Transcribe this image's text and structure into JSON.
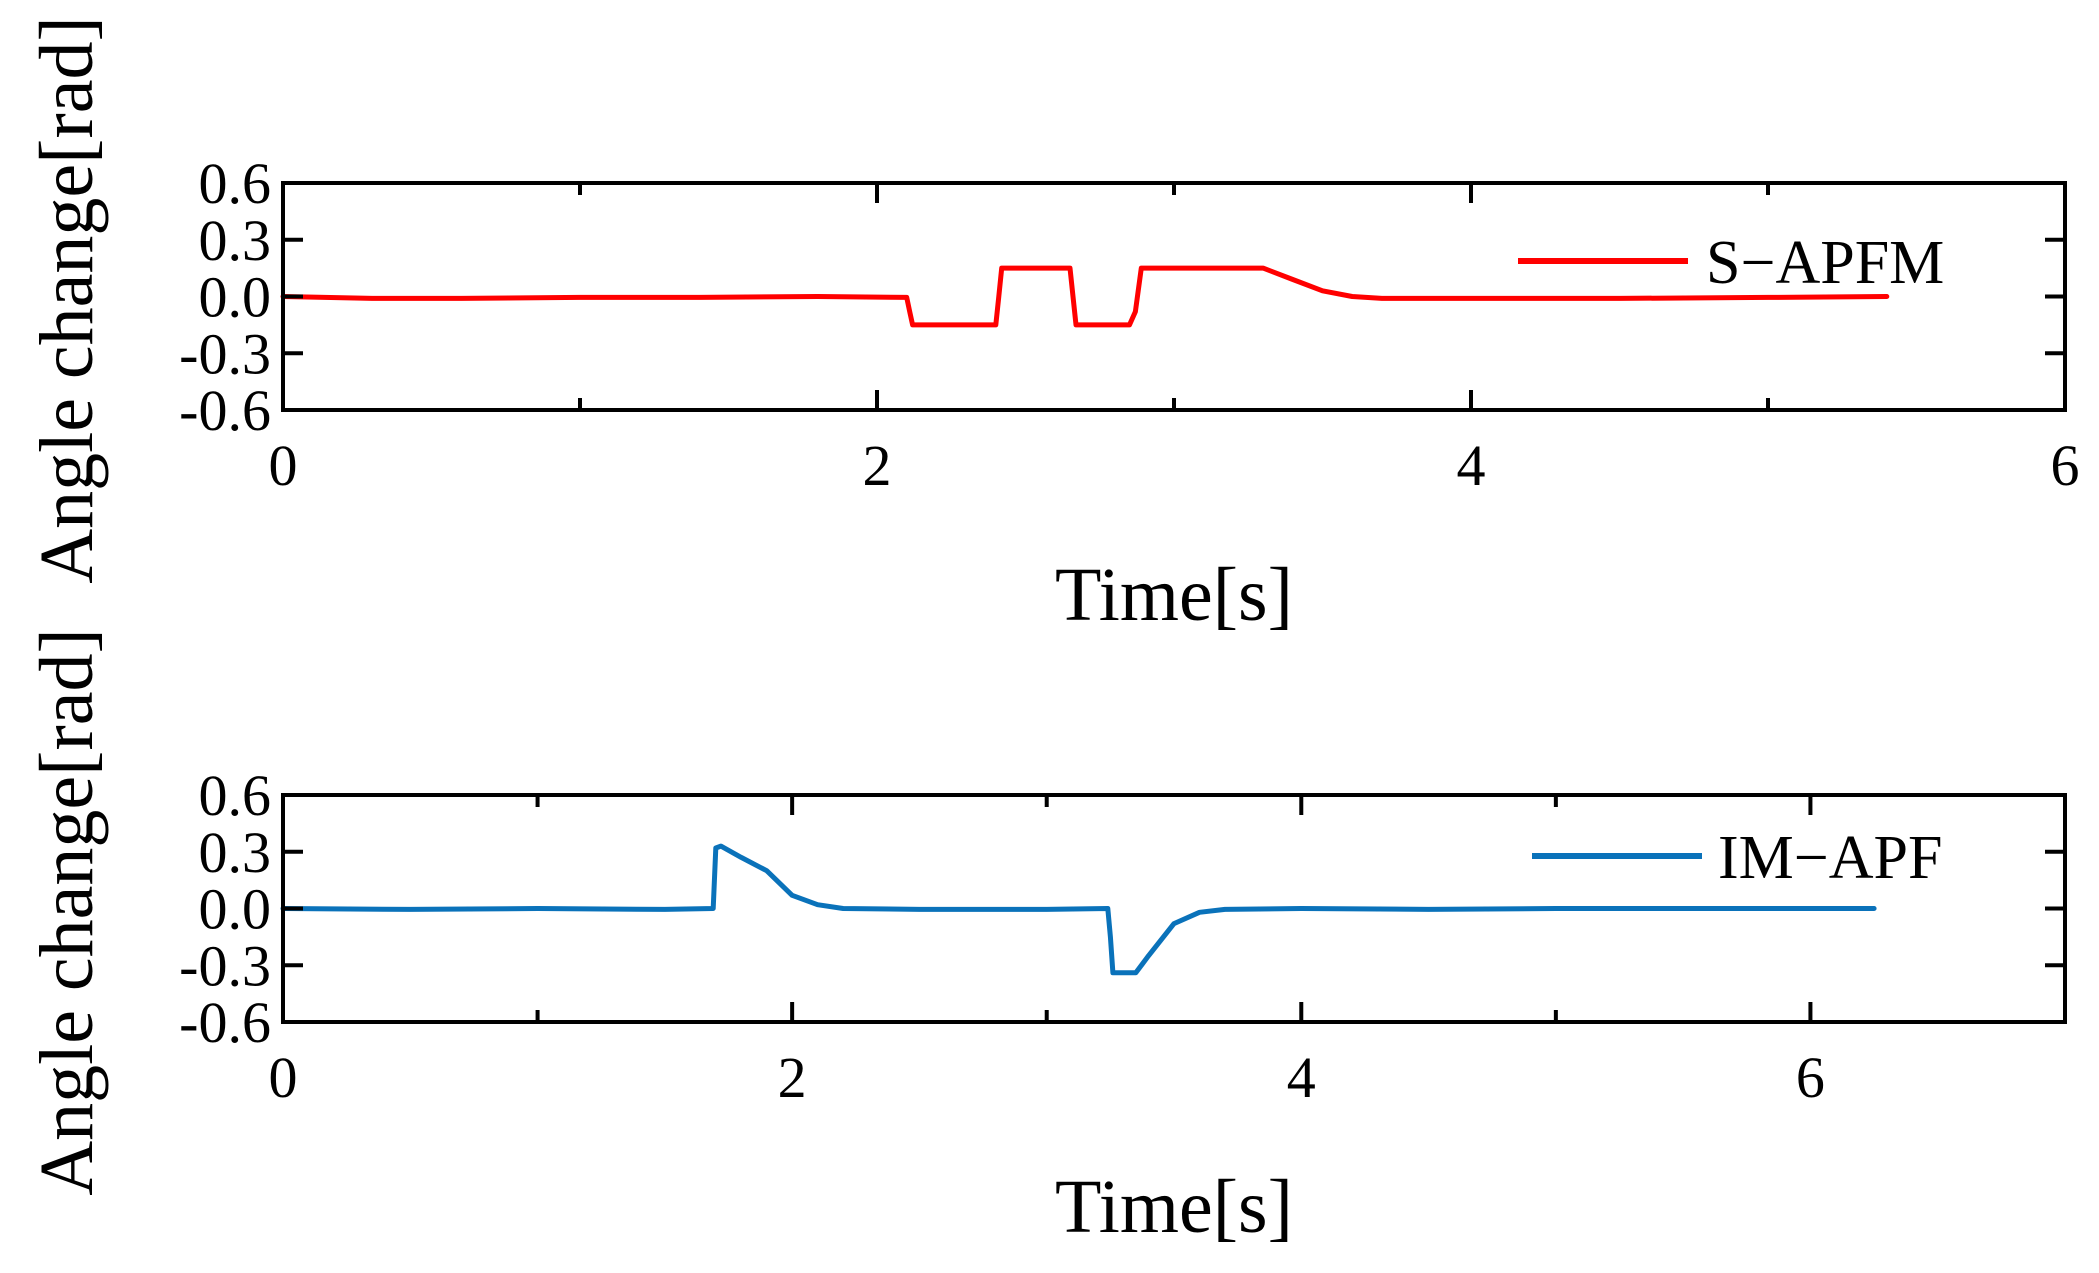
{
  "colors": {
    "series_red": "#ff0000",
    "series_blue": "#0a72ba",
    "axis": "#000000"
  },
  "chart_data": [
    {
      "type": "line",
      "xlabel": "Time[s]",
      "ylabel": "Angle change[rad]",
      "xlim": [
        0,
        6
      ],
      "ylim": [
        -0.6,
        0.6
      ],
      "xticks": [
        0,
        2,
        4,
        6
      ],
      "xtick_labels": [
        "0",
        "2",
        "4",
        "6"
      ],
      "xminor": [
        1,
        3,
        5
      ],
      "yticks": [
        0.6,
        0.3,
        0.0,
        -0.3,
        -0.6
      ],
      "ytick_labels": [
        "0.6",
        "0.3",
        "0.0",
        "-0.3",
        "-0.6"
      ],
      "grid": false,
      "legend": "top-right",
      "series": [
        {
          "name": "S−APFM",
          "color": "#ff0000",
          "x": [
            0,
            0.3,
            0.6,
            1.0,
            1.4,
            1.8,
            2.1,
            2.11,
            2.12,
            2.4,
            2.41,
            2.42,
            2.65,
            2.66,
            2.67,
            2.85,
            2.87,
            2.89,
            3.3,
            3.4,
            3.5,
            3.6,
            3.7,
            4.0,
            4.5,
            5.0,
            5.4
          ],
          "y": [
            0,
            -0.01,
            -0.01,
            -0.005,
            -0.005,
            0,
            -0.005,
            -0.08,
            -0.15,
            -0.15,
            0.0,
            0.15,
            0.15,
            0.0,
            -0.15,
            -0.15,
            -0.08,
            0.15,
            0.15,
            0.09,
            0.03,
            0.0,
            -0.01,
            -0.01,
            -0.01,
            -0.005,
            0
          ]
        }
      ]
    },
    {
      "type": "line",
      "xlabel": "Time[s]",
      "ylabel": "Angle change[rad]",
      "xlim": [
        0,
        7
      ],
      "ylim": [
        -0.6,
        0.6
      ],
      "xticks": [
        0,
        2,
        4,
        6
      ],
      "xtick_labels": [
        "0",
        "2",
        "4",
        "6"
      ],
      "xminor": [
        1,
        3,
        5,
        7
      ],
      "yticks": [
        0.6,
        0.3,
        0.0,
        -0.3,
        -0.6
      ],
      "ytick_labels": [
        "0.6",
        "0.3",
        "0.0",
        "-0.3",
        "-0.6"
      ],
      "grid": false,
      "legend": "top-right",
      "series": [
        {
          "name": "IM−APF",
          "color": "#0a72ba",
          "x": [
            0,
            0.5,
            1.0,
            1.5,
            1.69,
            1.7,
            1.72,
            1.8,
            1.9,
            2.0,
            2.1,
            2.2,
            2.5,
            3.0,
            3.24,
            3.25,
            3.26,
            3.35,
            3.4,
            3.5,
            3.6,
            3.7,
            4.0,
            4.5,
            5.0,
            5.5,
            6.0,
            6.25
          ],
          "y": [
            0,
            -0.005,
            0,
            -0.005,
            0,
            0.32,
            0.33,
            0.27,
            0.2,
            0.07,
            0.02,
            0.0,
            -0.005,
            -0.005,
            0,
            -0.15,
            -0.34,
            -0.34,
            -0.25,
            -0.08,
            -0.02,
            -0.005,
            0,
            -0.005,
            0,
            0,
            0,
            0
          ]
        }
      ]
    }
  ]
}
